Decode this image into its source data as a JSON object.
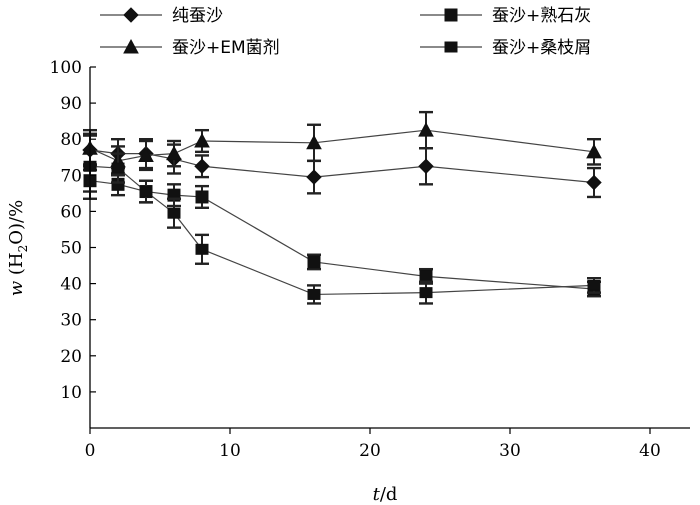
{
  "chart_data": {
    "type": "line",
    "xlabel_italic": "t",
    "xlabel_rest": "/d",
    "ylabel_italic": "w",
    "ylabel_rest_1": " (H",
    "ylabel_sub": "2",
    "ylabel_rest_2": "O)/%",
    "xlim": [
      0,
      40
    ],
    "ylim": [
      0,
      100
    ],
    "x_ticks": [
      "0",
      "10",
      "20",
      "30",
      "40"
    ],
    "y_ticks": [
      "10",
      "20",
      "30",
      "40",
      "50",
      "60",
      "70",
      "80",
      "90",
      "100"
    ],
    "x_tick_values": [
      0,
      10,
      20,
      30,
      40
    ],
    "y_tick_values": [
      10,
      20,
      30,
      40,
      50,
      60,
      70,
      80,
      90,
      100
    ],
    "grid": false,
    "legend_position": "top",
    "series": [
      {
        "name": "纯蚕沙",
        "marker": "diamond",
        "x": [
          0,
          2,
          4,
          6,
          8,
          16,
          24,
          36
        ],
        "y": [
          77,
          76,
          76,
          74.5,
          72.5,
          69.5,
          72.5,
          68
        ],
        "err": [
          4,
          4,
          4,
          4,
          3,
          4.5,
          5,
          4
        ]
      },
      {
        "name": "蚕沙+熟石灰",
        "marker": "square",
        "x": [
          0,
          2,
          4,
          6,
          8,
          16,
          24,
          36
        ],
        "y": [
          68.5,
          67.5,
          65.5,
          64.5,
          64,
          46,
          42,
          38.5
        ],
        "err": [
          3,
          3,
          3,
          3,
          3,
          2,
          2,
          2
        ]
      },
      {
        "name": "蚕沙+EM菌剂",
        "marker": "triangle",
        "x": [
          0,
          2,
          4,
          6,
          8,
          16,
          24,
          36
        ],
        "y": [
          77.5,
          74,
          75.5,
          76,
          79.5,
          79,
          82.5,
          76.5
        ],
        "err": [
          5,
          4,
          4,
          3.5,
          3,
          5,
          5,
          3.5
        ]
      },
      {
        "name": "蚕沙+桑枝屑",
        "marker": "square-small",
        "x": [
          0,
          2,
          4,
          6,
          8,
          16,
          24,
          36
        ],
        "y": [
          72.5,
          72,
          65.5,
          59.5,
          49.5,
          37,
          37.5,
          39.5
        ],
        "err": [
          9,
          4,
          3,
          4,
          4,
          2.5,
          3,
          2
        ]
      }
    ]
  }
}
